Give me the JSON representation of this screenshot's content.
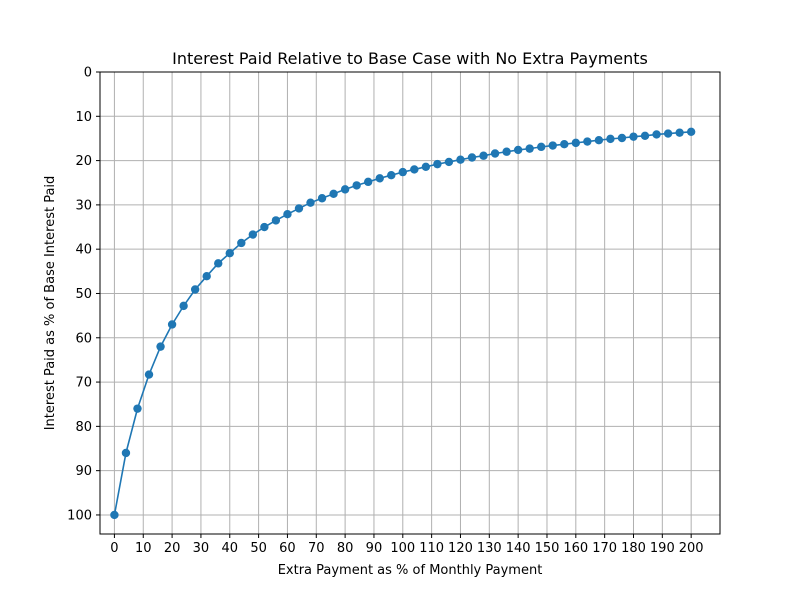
{
  "chart_data": {
    "type": "line",
    "title": "Interest Paid Relative to Base Case with No Extra Payments",
    "xlabel": "Extra Payment as % of Monthly Payment",
    "ylabel": "Interest Paid as % of Base Interest Paid",
    "xlim": [
      -5,
      210
    ],
    "ylim": [
      104.3,
      0
    ],
    "y_inverted": true,
    "grid": true,
    "marker": "circle",
    "color": "#1f77b4",
    "xticks": [
      0,
      10,
      20,
      30,
      40,
      50,
      60,
      70,
      80,
      90,
      100,
      110,
      120,
      130,
      140,
      150,
      160,
      170,
      180,
      190,
      200
    ],
    "yticks": [
      0,
      10,
      20,
      30,
      40,
      50,
      60,
      70,
      80,
      90,
      100
    ],
    "series": [
      {
        "x": [
          0,
          4,
          8,
          12,
          16,
          20,
          24,
          28,
          32,
          36,
          40,
          44,
          48,
          52,
          56,
          60,
          64,
          68,
          72,
          76,
          80,
          84,
          88,
          92,
          96,
          100,
          104,
          108,
          112,
          116,
          120,
          124,
          128,
          132,
          136,
          140,
          144,
          148,
          152,
          156,
          160,
          164,
          168,
          172,
          176,
          180,
          184,
          188,
          192,
          196,
          200
        ],
        "y": [
          100,
          86,
          76,
          68.3,
          62,
          57,
          52.8,
          49.1,
          46.1,
          43.2,
          40.9,
          38.6,
          36.7,
          35,
          33.5,
          32.1,
          30.8,
          29.5,
          28.5,
          27.5,
          26.5,
          25.6,
          24.8,
          24,
          23.3,
          22.6,
          22,
          21.4,
          20.8,
          20.3,
          19.8,
          19.3,
          18.9,
          18.4,
          18,
          17.6,
          17.3,
          16.9,
          16.6,
          16.3,
          16,
          15.7,
          15.4,
          15.1,
          14.9,
          14.6,
          14.4,
          14.1,
          13.9,
          13.7,
          13.5
        ]
      }
    ]
  }
}
